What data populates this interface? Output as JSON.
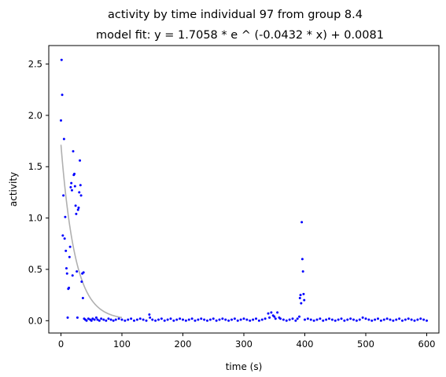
{
  "chart_data": {
    "type": "scatter",
    "title": "activity by time individual 97 from group 8.4",
    "subtitle": "model fit: y = 1.7058 * e ^ (-0.0432 * x) + 0.0081",
    "xlabel": "time (s)",
    "ylabel": "activity",
    "xlim": [
      -20,
      620
    ],
    "ylim": [
      -0.12,
      2.68
    ],
    "x_ticks": [
      0,
      100,
      200,
      300,
      400,
      500,
      600
    ],
    "y_ticks": [
      0.0,
      0.5,
      1.0,
      1.5,
      2.0,
      2.5
    ],
    "x_tick_labels": [
      "0",
      "100",
      "200",
      "300",
      "400",
      "500",
      "600"
    ],
    "y_tick_labels": [
      "0.0",
      "0.5",
      "1.0",
      "1.5",
      "2.0",
      "2.5"
    ],
    "grid": false,
    "point_color": "#0000ff",
    "fit_color": "#b0b0b0",
    "fit_model": {
      "a": 1.7058,
      "b": -0.0432,
      "c": 0.0081,
      "x_range": [
        0,
        100
      ]
    },
    "series": [
      {
        "points": [
          [
            0,
            1.95
          ],
          [
            1,
            2.54
          ],
          [
            2,
            2.2
          ],
          [
            3,
            0.83
          ],
          [
            4,
            1.22
          ],
          [
            5,
            1.77
          ],
          [
            6,
            0.8
          ],
          [
            7,
            1.01
          ],
          [
            8,
            0.68
          ],
          [
            9,
            0.51
          ],
          [
            10,
            0.46
          ],
          [
            11,
            0.03
          ],
          [
            12,
            0.31
          ],
          [
            13,
            0.32
          ],
          [
            14,
            0.62
          ],
          [
            15,
            0.72
          ],
          [
            16,
            1.3
          ],
          [
            17,
            1.34
          ],
          [
            18,
            1.27
          ],
          [
            19,
            0.44
          ],
          [
            20,
            1.65
          ],
          [
            21,
            1.42
          ],
          [
            22,
            1.43
          ],
          [
            23,
            1.31
          ],
          [
            24,
            1.12
          ],
          [
            25,
            1.04
          ],
          [
            26,
            0.48
          ],
          [
            27,
            0.03
          ],
          [
            28,
            1.08
          ],
          [
            29,
            1.1
          ],
          [
            30,
            1.25
          ],
          [
            31,
            1.56
          ],
          [
            32,
            1.32
          ],
          [
            33,
            1.22
          ],
          [
            34,
            0.38
          ],
          [
            35,
            0.46
          ],
          [
            36,
            0.22
          ],
          [
            37,
            0.47
          ],
          [
            38,
            0.02
          ],
          [
            40,
            0.01
          ],
          [
            42,
            0.0
          ],
          [
            45,
            0.02
          ],
          [
            48,
            0.01
          ],
          [
            50,
            0.0
          ],
          [
            52,
            0.02
          ],
          [
            55,
            0.01
          ],
          [
            58,
            0.03
          ],
          [
            60,
            0.01
          ],
          [
            63,
            0.0
          ],
          [
            66,
            0.02
          ],
          [
            70,
            0.01
          ],
          [
            74,
            0.0
          ],
          [
            78,
            0.02
          ],
          [
            82,
            0.01
          ],
          [
            86,
            0.0
          ],
          [
            90,
            0.01
          ],
          [
            95,
            0.02
          ],
          [
            100,
            0.01
          ],
          [
            105,
            0.0
          ],
          [
            110,
            0.01
          ],
          [
            115,
            0.02
          ],
          [
            120,
            0.0
          ],
          [
            125,
            0.01
          ],
          [
            130,
            0.02
          ],
          [
            135,
            0.01
          ],
          [
            140,
            0.0
          ],
          [
            145,
            0.06
          ],
          [
            146,
            0.03
          ],
          [
            150,
            0.01
          ],
          [
            155,
            0.0
          ],
          [
            160,
            0.01
          ],
          [
            165,
            0.02
          ],
          [
            170,
            0.0
          ],
          [
            175,
            0.01
          ],
          [
            180,
            0.02
          ],
          [
            185,
            0.0
          ],
          [
            190,
            0.01
          ],
          [
            195,
            0.02
          ],
          [
            200,
            0.01
          ],
          [
            205,
            0.0
          ],
          [
            210,
            0.01
          ],
          [
            215,
            0.02
          ],
          [
            220,
            0.0
          ],
          [
            225,
            0.01
          ],
          [
            230,
            0.02
          ],
          [
            235,
            0.01
          ],
          [
            240,
            0.0
          ],
          [
            245,
            0.01
          ],
          [
            250,
            0.02
          ],
          [
            255,
            0.0
          ],
          [
            260,
            0.01
          ],
          [
            265,
            0.02
          ],
          [
            270,
            0.01
          ],
          [
            275,
            0.0
          ],
          [
            280,
            0.01
          ],
          [
            285,
            0.02
          ],
          [
            290,
            0.0
          ],
          [
            295,
            0.01
          ],
          [
            300,
            0.02
          ],
          [
            305,
            0.01
          ],
          [
            310,
            0.0
          ],
          [
            315,
            0.01
          ],
          [
            320,
            0.02
          ],
          [
            325,
            0.0
          ],
          [
            330,
            0.01
          ],
          [
            335,
            0.02
          ],
          [
            340,
            0.07
          ],
          [
            342,
            0.03
          ],
          [
            345,
            0.08
          ],
          [
            348,
            0.05
          ],
          [
            350,
            0.04
          ],
          [
            352,
            0.02
          ],
          [
            355,
            0.08
          ],
          [
            358,
            0.03
          ],
          [
            360,
            0.02
          ],
          [
            365,
            0.01
          ],
          [
            370,
            0.0
          ],
          [
            375,
            0.01
          ],
          [
            380,
            0.02
          ],
          [
            385,
            0.0
          ],
          [
            388,
            0.02
          ],
          [
            391,
            0.04
          ],
          [
            392,
            0.22
          ],
          [
            393,
            0.25
          ],
          [
            394,
            0.17
          ],
          [
            395,
            0.96
          ],
          [
            396,
            0.6
          ],
          [
            397,
            0.48
          ],
          [
            398,
            0.26
          ],
          [
            399,
            0.2
          ],
          [
            400,
            0.01
          ],
          [
            405,
            0.02
          ],
          [
            410,
            0.01
          ],
          [
            415,
            0.0
          ],
          [
            420,
            0.01
          ],
          [
            425,
            0.02
          ],
          [
            430,
            0.0
          ],
          [
            435,
            0.01
          ],
          [
            440,
            0.02
          ],
          [
            445,
            0.01
          ],
          [
            450,
            0.0
          ],
          [
            455,
            0.01
          ],
          [
            460,
            0.02
          ],
          [
            465,
            0.0
          ],
          [
            470,
            0.01
          ],
          [
            475,
            0.02
          ],
          [
            480,
            0.01
          ],
          [
            485,
            0.0
          ],
          [
            490,
            0.01
          ],
          [
            495,
            0.03
          ],
          [
            500,
            0.02
          ],
          [
            505,
            0.01
          ],
          [
            510,
            0.0
          ],
          [
            515,
            0.01
          ],
          [
            520,
            0.02
          ],
          [
            525,
            0.0
          ],
          [
            530,
            0.01
          ],
          [
            535,
            0.02
          ],
          [
            540,
            0.01
          ],
          [
            545,
            0.0
          ],
          [
            550,
            0.01
          ],
          [
            555,
            0.02
          ],
          [
            560,
            0.0
          ],
          [
            565,
            0.01
          ],
          [
            570,
            0.02
          ],
          [
            575,
            0.01
          ],
          [
            580,
            0.0
          ],
          [
            585,
            0.01
          ],
          [
            590,
            0.02
          ],
          [
            595,
            0.01
          ],
          [
            600,
            0.0
          ]
        ]
      }
    ]
  }
}
